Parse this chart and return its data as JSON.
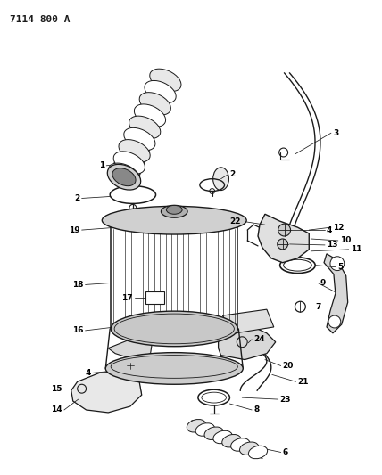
{
  "title": "7114 800 A",
  "bg_color": "#ffffff",
  "line_color": "#1a1a1a",
  "title_fontsize": 8,
  "figsize": [
    4.28,
    5.33
  ],
  "dpi": 100
}
